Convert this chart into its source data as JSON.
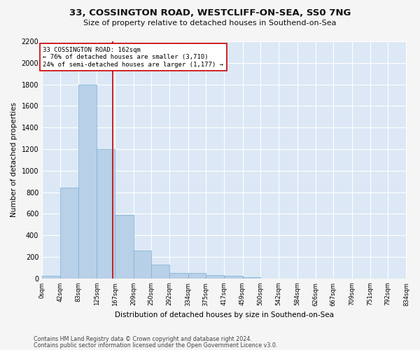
{
  "title_line1": "33, COSSINGTON ROAD, WESTCLIFF-ON-SEA, SS0 7NG",
  "title_line2": "Size of property relative to detached houses in Southend-on-Sea",
  "xlabel": "Distribution of detached houses by size in Southend-on-Sea",
  "ylabel": "Number of detached properties",
  "footer_line1": "Contains HM Land Registry data © Crown copyright and database right 2024.",
  "footer_line2": "Contains public sector information licensed under the Open Government Licence v3.0.",
  "bin_edges": [
    0,
    42,
    83,
    125,
    167,
    209,
    250,
    292,
    334,
    375,
    417,
    459,
    500,
    542,
    584,
    626,
    667,
    709,
    751,
    792,
    834
  ],
  "bar_heights": [
    25,
    845,
    1800,
    1200,
    590,
    260,
    130,
    50,
    48,
    32,
    25,
    12,
    0,
    0,
    0,
    0,
    0,
    0,
    0,
    0
  ],
  "bar_color": "#b8d0e8",
  "bar_edge_color": "#7aafd4",
  "property_size": 162,
  "annotation_title": "33 COSSINGTON ROAD: 162sqm",
  "annotation_line2": "← 76% of detached houses are smaller (3,710)",
  "annotation_line3": "24% of semi-detached houses are larger (1,177) →",
  "vline_color": "#cc0000",
  "annotation_box_color": "#ffffff",
  "annotation_box_edge": "#cc0000",
  "ylim": [
    0,
    2200
  ],
  "xlim": [
    0,
    834
  ],
  "background_color": "#dce8f5",
  "fig_background": "#f5f5f5",
  "grid_color": "#ffffff",
  "yticks": [
    0,
    200,
    400,
    600,
    800,
    1000,
    1200,
    1400,
    1600,
    1800,
    2000,
    2200
  ]
}
